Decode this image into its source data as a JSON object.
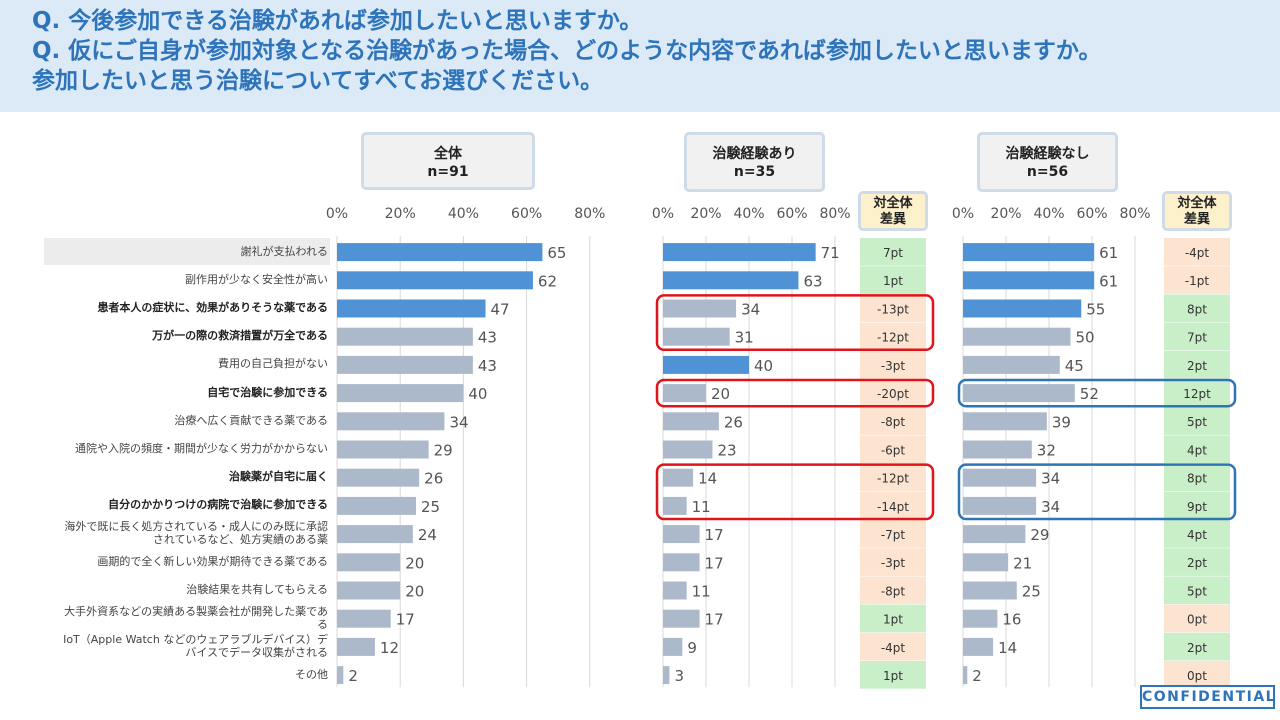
{
  "questions": [
    "Q.  今後参加できる治験があれば参加したいと思いますか。",
    "Q.  仮にご自身が参加対象となる治験があった場合、どのような内容であれば参加したいと思いますか。",
    "参加したいと思う治験についてすべてお選びください。"
  ],
  "colors": {
    "highlight_bar": "#4f93d6",
    "normal_bar": "#acb9ca",
    "positive_diff": "#c8efc8",
    "negative_diff": "#fde4d0",
    "red_box": "#e0151b",
    "blue_box": "#2e75b6"
  },
  "diff_header": "対全体\n差異",
  "confidential": "CONFIDENTIAL",
  "chart_data": {
    "type": "bar",
    "orientation": "horizontal",
    "x_ticks": [
      "0%",
      "20%",
      "40%",
      "60%",
      "80%"
    ],
    "xlim": [
      0,
      80
    ],
    "categories": [
      "謝礼が支払われる",
      "副作用が少なく安全性が高い",
      "患者本人の症状に、効果がありそうな薬である",
      "万が一の際の救済措置が万全である",
      "費用の自己負担がない",
      "自宅で治験に参加できる",
      "治療へ広く貢献できる薬である",
      "通院や入院の頻度・期間が少なく労力がかからない",
      "治験薬が自宅に届く",
      "自分のかかりつけの病院で治験に参加できる",
      "海外で既に長く処方されている・成人にのみ既に承認\nされているなど、処方実績のある薬",
      "画期的で全く新しい効果が期待できる薬である",
      "治験結果を共有してもらえる",
      "大手外資系などの実績ある製薬会社が開発した薬であ\nる",
      "IoT（Apple Watch などのウェアラブルデバイス）デ\nバイスでデータ収集がされる",
      "その他"
    ],
    "bold_categories": [
      2,
      3,
      5,
      8,
      9
    ],
    "series": [
      {
        "name": "全体",
        "n_label": "n=91",
        "values": [
          65,
          62,
          47,
          43,
          43,
          40,
          34,
          29,
          26,
          25,
          24,
          20,
          20,
          17,
          12,
          2
        ],
        "highlight": [
          true,
          true,
          true,
          false,
          false,
          false,
          false,
          false,
          false,
          false,
          false,
          false,
          false,
          false,
          false,
          false
        ]
      },
      {
        "name": "治験経験あり",
        "n_label": "n=35",
        "values": [
          71,
          63,
          34,
          31,
          40,
          20,
          26,
          23,
          14,
          11,
          17,
          17,
          11,
          17,
          9,
          3
        ],
        "highlight": [
          true,
          true,
          false,
          false,
          true,
          false,
          false,
          false,
          false,
          false,
          false,
          false,
          false,
          false,
          false,
          false
        ],
        "diff": [
          "7pt",
          "1pt",
          "-13pt",
          "-12pt",
          "-3pt",
          "-20pt",
          "-8pt",
          "-6pt",
          "-12pt",
          "-14pt",
          "-7pt",
          "-3pt",
          "-8pt",
          "1pt",
          "-4pt",
          "1pt"
        ],
        "diff_positive": [
          true,
          true,
          false,
          false,
          false,
          false,
          false,
          false,
          false,
          false,
          false,
          false,
          false,
          true,
          false,
          true
        ],
        "boxed_groups": [
          [
            2,
            3
          ],
          [
            5,
            5
          ],
          [
            8,
            9
          ]
        ]
      },
      {
        "name": "治験経験なし",
        "n_label": "n=56",
        "values": [
          61,
          61,
          55,
          50,
          45,
          52,
          39,
          32,
          34,
          34,
          29,
          21,
          25,
          16,
          14,
          2
        ],
        "highlight": [
          true,
          true,
          true,
          false,
          false,
          false,
          false,
          false,
          false,
          false,
          false,
          false,
          false,
          false,
          false,
          false
        ],
        "diff": [
          "-4pt",
          "-1pt",
          "8pt",
          "7pt",
          "2pt",
          "12pt",
          "5pt",
          "4pt",
          "8pt",
          "9pt",
          "4pt",
          "2pt",
          "5pt",
          "0pt",
          "2pt",
          "0pt"
        ],
        "diff_positive": [
          false,
          false,
          true,
          true,
          true,
          true,
          true,
          true,
          true,
          true,
          true,
          true,
          true,
          false,
          true,
          false
        ],
        "boxed_groups": [
          [
            5,
            5
          ],
          [
            8,
            9
          ]
        ]
      }
    ]
  }
}
